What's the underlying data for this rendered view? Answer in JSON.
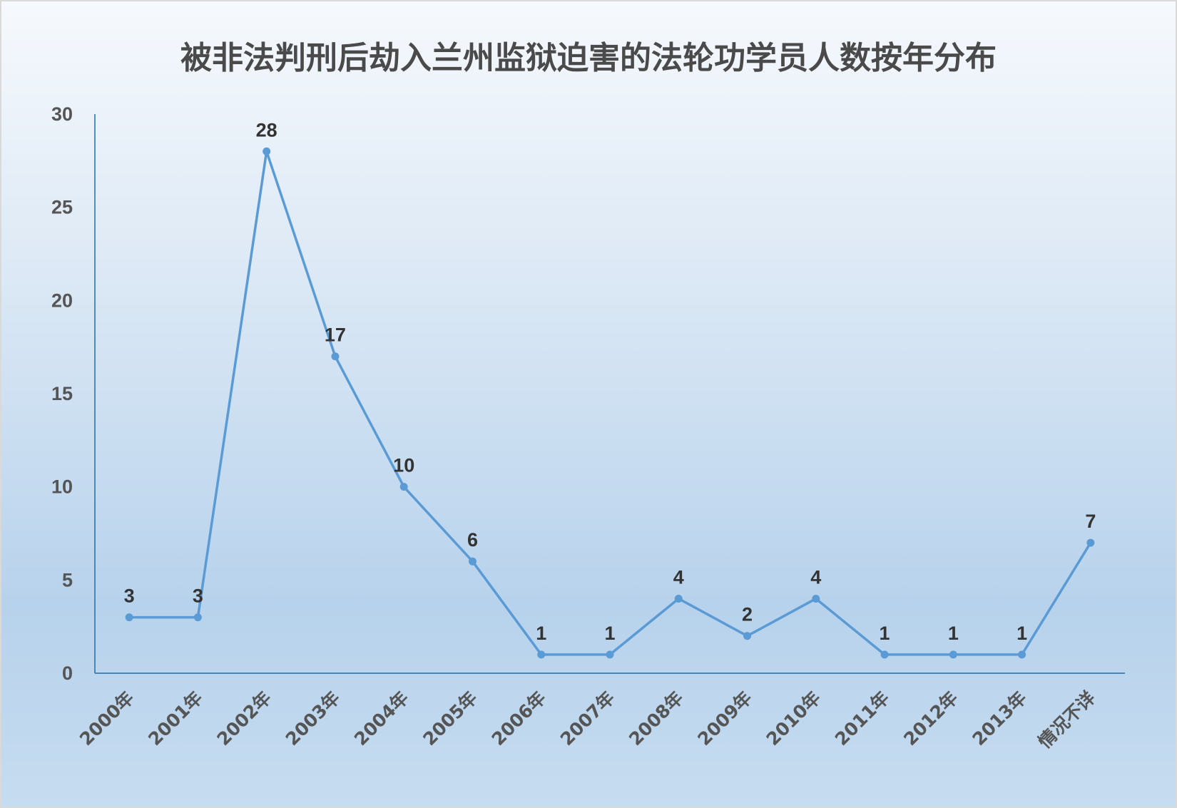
{
  "chart_data": {
    "type": "line",
    "title": "被非法判刑后劫入兰州监狱迫害的法轮功学员人数按年分布",
    "xlabel": "",
    "ylabel": "",
    "categories": [
      "2000年",
      "2001年",
      "2002年",
      "2003年",
      "2004年",
      "2005年",
      "2006年",
      "2007年",
      "2008年",
      "2009年",
      "2010年",
      "2011年",
      "2012年",
      "2013年",
      "情况不详"
    ],
    "series": [
      {
        "values": [
          3,
          3,
          28,
          17,
          10,
          6,
          1,
          1,
          4,
          2,
          4,
          1,
          1,
          1,
          7
        ]
      }
    ],
    "ylim": [
      0,
      30
    ],
    "yticks": [
      0,
      5,
      10,
      15,
      20,
      25,
      30
    ],
    "grid": false,
    "legend": "none",
    "colors": {
      "line": "#5b9bd5",
      "axis": "#1f6fa8",
      "text": "#555555"
    }
  }
}
